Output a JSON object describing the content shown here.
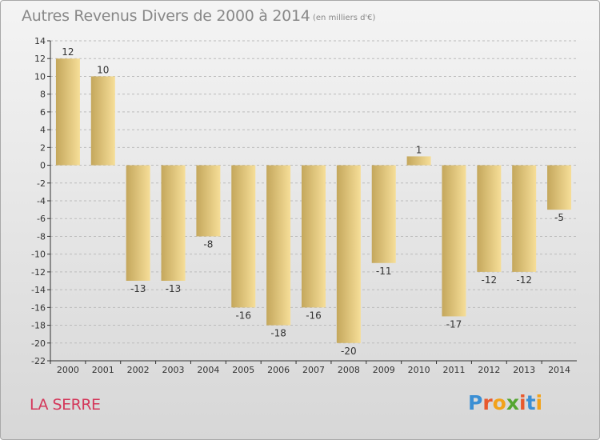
{
  "header": {
    "title": "Autres Revenus Divers de 2000 à 2014",
    "subtitle": "(en milliers d'€)"
  },
  "footer": {
    "commune": "LA SERRE",
    "logo_text": "Proxiti"
  },
  "colors": {
    "bar_light": "#f6de98",
    "bar_dark": "#c4a75c",
    "axis": "#333333",
    "grid": "#bbbbbb",
    "commune_text": "#d4375a",
    "logo_letters": [
      "#3b8fd4",
      "#e8592d",
      "#f2a21a",
      "#55a630",
      "#e8592d",
      "#3b8fd4",
      "#f2a21a"
    ]
  },
  "chart_data": {
    "type": "bar",
    "title": "Autres Revenus Divers de 2000 à 2014",
    "subtitle": "(en milliers d'€)",
    "categories": [
      "2000",
      "2001",
      "2002",
      "2003",
      "2004",
      "2005",
      "2006",
      "2007",
      "2008",
      "2009",
      "2010",
      "2011",
      "2012",
      "2013",
      "2014"
    ],
    "values": [
      12,
      10,
      -13,
      -13,
      -8,
      -16,
      -18,
      -16,
      -20,
      -11,
      1,
      -17,
      -12,
      -12,
      -5
    ],
    "ylim": [
      -22,
      14
    ],
    "yticks": [
      14,
      12,
      10,
      8,
      6,
      4,
      2,
      0,
      -2,
      -4,
      -6,
      -8,
      -10,
      -12,
      -14,
      -16,
      -18,
      -20,
      -22
    ],
    "grid": "horizontal dashed",
    "legend": "none"
  }
}
